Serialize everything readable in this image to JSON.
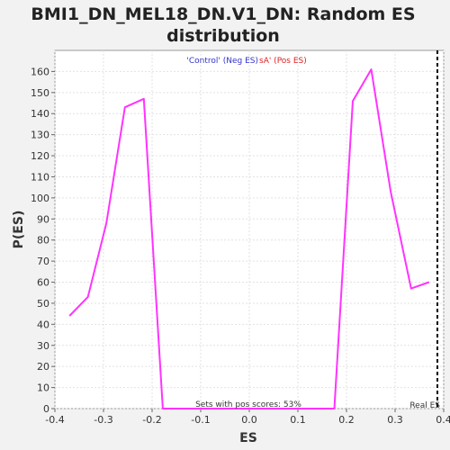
{
  "chart_data": {
    "type": "line",
    "title": "BMI1_DN_MEL18_DN.V1_DN: Random ES distribution",
    "title_lines": [
      "BMI1_DN_MEL18_DN.V1_DN: Random ES",
      "distribution"
    ],
    "xlabel": "ES",
    "ylabel": "P(ES)",
    "xlim": [
      -0.4,
      0.4
    ],
    "ylim": [
      0,
      170
    ],
    "x_ticks": [
      -0.4,
      -0.3,
      -0.2,
      -0.1,
      0.0,
      0.1,
      0.2,
      0.3,
      0.4
    ],
    "x_tick_labels": [
      "-0.4",
      "-0.3",
      "-0.2",
      "-0.1",
      "0.0",
      "0.1",
      "0.2",
      "0.3",
      "0.4"
    ],
    "y_ticks": [
      0,
      10,
      20,
      30,
      40,
      50,
      60,
      70,
      80,
      90,
      100,
      110,
      120,
      130,
      140,
      150,
      160
    ],
    "grid": true,
    "series": [
      {
        "color": "#ff33ff",
        "x": [
          -0.37,
          -0.332,
          -0.294,
          -0.256,
          -0.217,
          -0.178,
          -0.15,
          0.0,
          0.15,
          0.175,
          0.213,
          0.251,
          0.291,
          0.333,
          0.37
        ],
        "y": [
          44,
          53,
          88,
          143,
          147,
          0,
          0,
          0,
          0,
          0,
          146,
          161,
          103,
          57,
          60
        ]
      }
    ],
    "real_es": {
      "x": 0.387,
      "label": "Real ES",
      "color": "#000000"
    },
    "legend": {
      "control_text": "'Control' (Neg ES)",
      "control_color": "#3333cc",
      "sa_text": "sA' (Pos ES)",
      "sa_color": "#dd2222"
    },
    "annotation": "Sets with pos scores: 53%"
  }
}
